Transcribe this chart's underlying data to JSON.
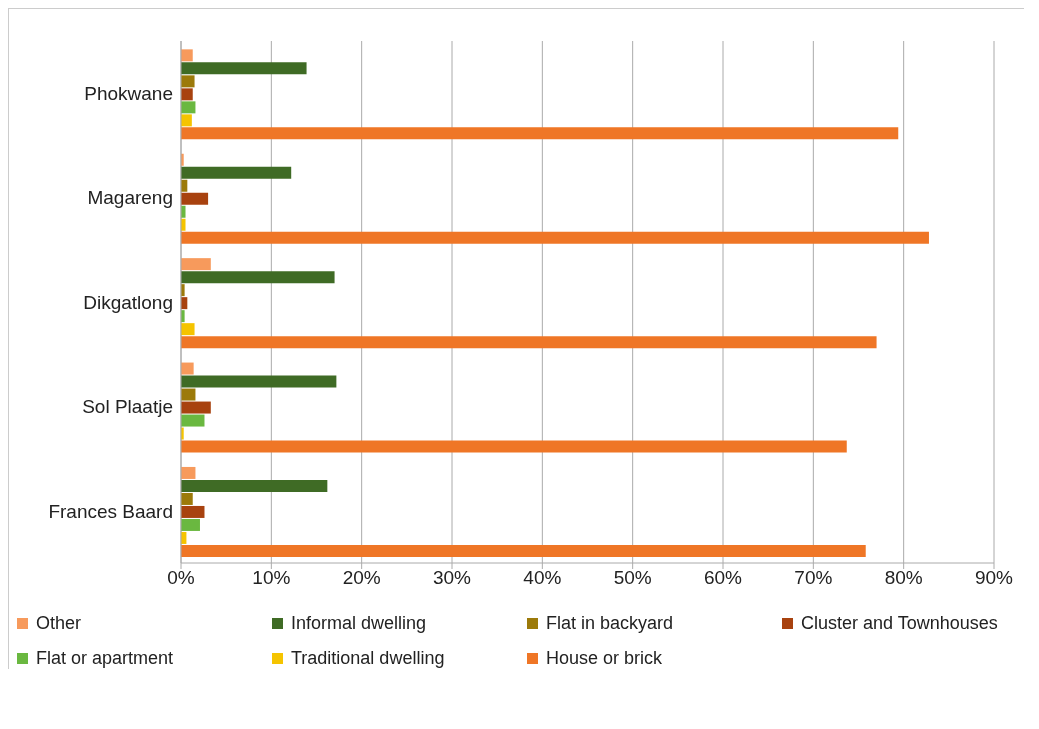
{
  "chart_data": {
    "type": "bar",
    "orientation": "horizontal",
    "categories": [
      "Phokwane",
      "Magareng",
      "Dikgatlong",
      "Sol Plaatje",
      "Frances Baard"
    ],
    "series": [
      {
        "name": "Other",
        "color": "#f79a5c",
        "values": [
          1.3,
          0.3,
          3.3,
          1.4,
          1.6
        ]
      },
      {
        "name": "Informal dwelling",
        "color": "#3f6b25",
        "values": [
          13.9,
          12.2,
          17.0,
          17.2,
          16.2
        ]
      },
      {
        "name": "Flat in backyard",
        "color": "#9c7a0a",
        "values": [
          1.5,
          0.7,
          0.4,
          1.6,
          1.3
        ]
      },
      {
        "name": "Cluster and Townhouses",
        "color": "#a8420f",
        "values": [
          1.3,
          3.0,
          0.7,
          3.3,
          2.6
        ]
      },
      {
        "name": "Flat or apartment",
        "color": "#6ab840",
        "values": [
          1.6,
          0.5,
          0.4,
          2.6,
          2.1
        ]
      },
      {
        "name": "Traditional dwelling",
        "color": "#f5c400",
        "values": [
          1.2,
          0.5,
          1.5,
          0.3,
          0.6
        ]
      },
      {
        "name": "House or brick",
        "color": "#ef7626",
        "values": [
          79.4,
          82.8,
          77.0,
          73.7,
          75.8
        ]
      }
    ],
    "xlim": [
      0,
      90
    ],
    "xticks": [
      {
        "value": 0,
        "label": "0%"
      },
      {
        "value": 10,
        "label": "10%"
      },
      {
        "value": 20,
        "label": "20%"
      },
      {
        "value": 30,
        "label": "30%"
      },
      {
        "value": 40,
        "label": "40%"
      },
      {
        "value": 50,
        "label": "50%"
      },
      {
        "value": 60,
        "label": "60%"
      },
      {
        "value": 70,
        "label": "70%"
      },
      {
        "value": 80,
        "label": "80%"
      },
      {
        "value": 90,
        "label": "90%"
      }
    ],
    "grid": "x",
    "legend": "bottom"
  }
}
